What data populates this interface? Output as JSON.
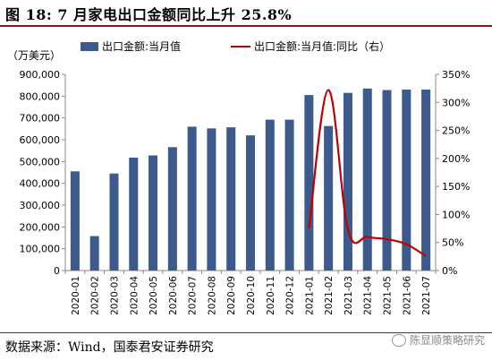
{
  "title": "图 18:  7 月家电出口金额同比上升 25.8%",
  "source": "数据来源：Wind，国泰君安证券研究",
  "watermark": "陈显顺策略研究",
  "chart_data": {
    "type": "bar",
    "categories": [
      "2020-01",
      "2020-02",
      "2020-03",
      "2020-04",
      "2020-05",
      "2020-06",
      "2020-07",
      "2020-08",
      "2020-09",
      "2020-10",
      "2020-11",
      "2020-12",
      "2021-01",
      "2021-02",
      "2021-03",
      "2021-04",
      "2021-05",
      "2021-06",
      "2021-07"
    ],
    "unit_label": "（万美元）",
    "series": [
      {
        "name": "出口金额:当月值",
        "type": "bar",
        "axis": "left",
        "color": "#3d5a8c",
        "values": [
          455000,
          158000,
          445000,
          518000,
          528000,
          566000,
          660000,
          652000,
          657000,
          620000,
          692000,
          692000,
          805000,
          663000,
          815000,
          835000,
          828000,
          830000,
          830000
        ]
      },
      {
        "name": "出口金额:当月值:同比（右）",
        "type": "line",
        "axis": "right",
        "color": "#c00000",
        "x": [
          "2021-01",
          "2021-02",
          "2021-03",
          "2021-04",
          "2021-05",
          "2021-06",
          "2021-07"
        ],
        "values": [
          75,
          322,
          73,
          60,
          56,
          47,
          25.8
        ]
      }
    ],
    "ylim_left": [
      0,
      900000
    ],
    "yticks_left": [
      "0",
      "100,000",
      "200,000",
      "300,000",
      "400,000",
      "500,000",
      "600,000",
      "700,000",
      "800,000",
      "900,000"
    ],
    "ylim_right": [
      0,
      350
    ],
    "yticks_right": [
      "0%",
      "50%",
      "100%",
      "150%",
      "200%",
      "250%",
      "300%",
      "350%"
    ],
    "legend_position": "top",
    "grid": false
  }
}
